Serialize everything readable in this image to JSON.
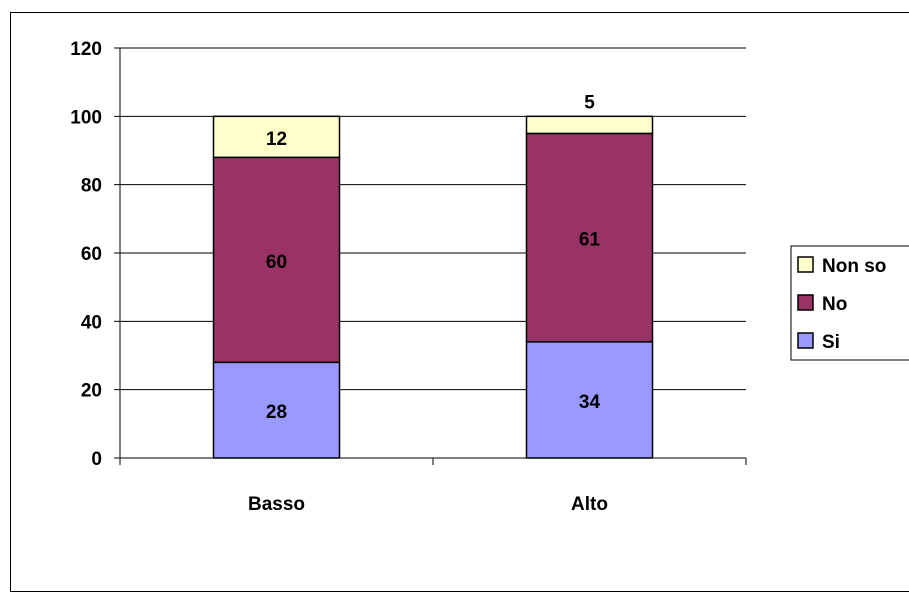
{
  "chart_data": {
    "type": "bar",
    "stacked": true,
    "categories": [
      "Basso",
      "Alto"
    ],
    "series": [
      {
        "name": "Si",
        "values": [
          28,
          34
        ],
        "color": "#9999FF"
      },
      {
        "name": "No",
        "values": [
          60,
          61
        ],
        "color": "#993366"
      },
      {
        "name": "Non so",
        "values": [
          12,
          5
        ],
        "color": "#FFFFCC"
      }
    ],
    "ylim": [
      0,
      120
    ],
    "yticks": [
      "0",
      "20",
      "40",
      "60",
      "80",
      "100",
      "120"
    ],
    "grid": true,
    "legend_position": "right",
    "legend_labels": [
      "Non so",
      "No",
      "Si"
    ]
  }
}
